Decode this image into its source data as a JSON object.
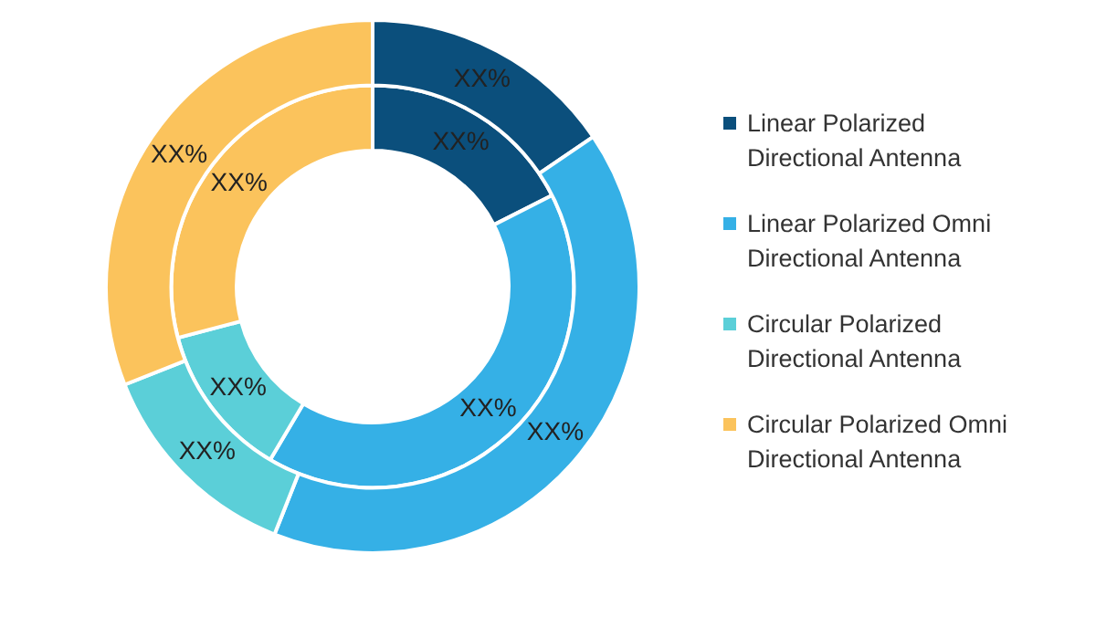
{
  "chart_data": {
    "type": "donut",
    "categories": [
      "Linear Polarized Directional Antenna",
      "Linear Polarized Omni Directional Antenna",
      "Circular Polarized Directional Antenna",
      "Circular Polarized Omni Directional Antenna"
    ],
    "colors": [
      "#0b4f7c",
      "#35b0e6",
      "#5bcfd8",
      "#fbc35c"
    ],
    "series": [
      {
        "values": [
          15.5,
          40.5,
          13,
          31
        ],
        "value_labels": [
          "XX%",
          "XX%",
          "XX%",
          "XX%"
        ]
      },
      {
        "values": [
          17.5,
          41,
          12.4,
          29.1
        ],
        "value_labels": [
          "XX%",
          "XX%",
          "XX%",
          "XX%"
        ]
      }
    ],
    "legend": "right"
  }
}
